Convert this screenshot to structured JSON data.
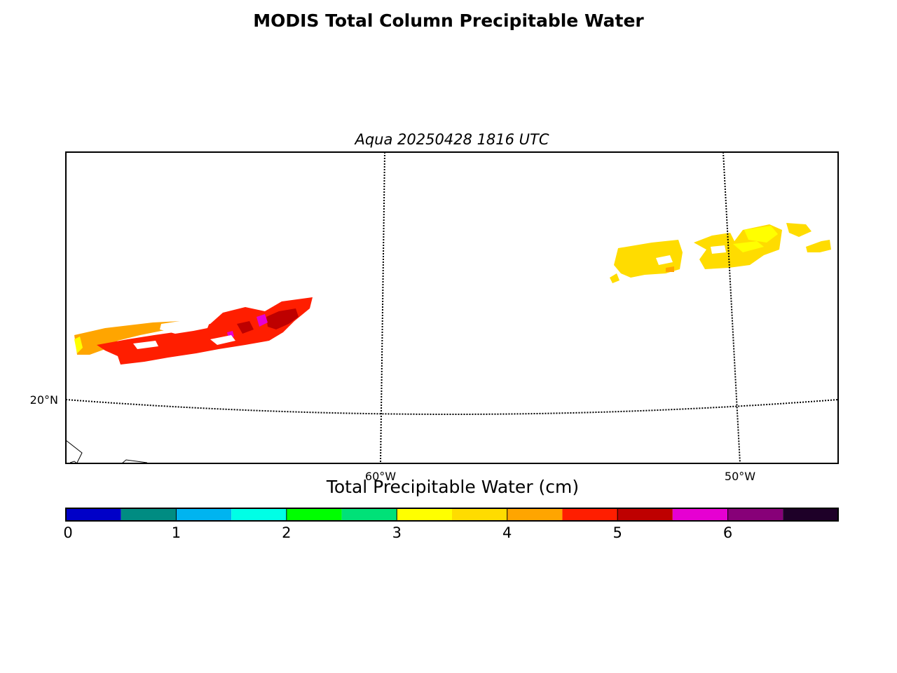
{
  "title": "MODIS Total Column Precipitable Water",
  "subtitle": "Aqua 20250428 1816 UTC",
  "map": {
    "latitude_labels": [
      "20°N"
    ],
    "longitude_labels": [
      "60°W",
      "50°W"
    ],
    "graticule_style": "dotted",
    "coastline_color": "#000000"
  },
  "colorbar": {
    "label": "Total Precipitable Water (cm)",
    "range": [
      0,
      7
    ],
    "bin_width": 0.5,
    "tick_labels": [
      "0",
      "1",
      "2",
      "3",
      "4",
      "5",
      "6"
    ],
    "colors": [
      "#0000c8",
      "#008c82",
      "#00b4f0",
      "#00ffe6",
      "#00ff00",
      "#00e178",
      "#ffff00",
      "#ffdc00",
      "#ffa500",
      "#ff1e00",
      "#be0000",
      "#e600d2",
      "#870078",
      "#1e0028"
    ]
  },
  "fields": {
    "west_patch_dominant_color": "#ff1e00",
    "west_patch_edge_color": "#ffa500",
    "west_patch_accent_color": "#e600d2",
    "east_patch_dominant_color": "#ffdc00",
    "east_patch_accent_color": "#ffff00"
  }
}
